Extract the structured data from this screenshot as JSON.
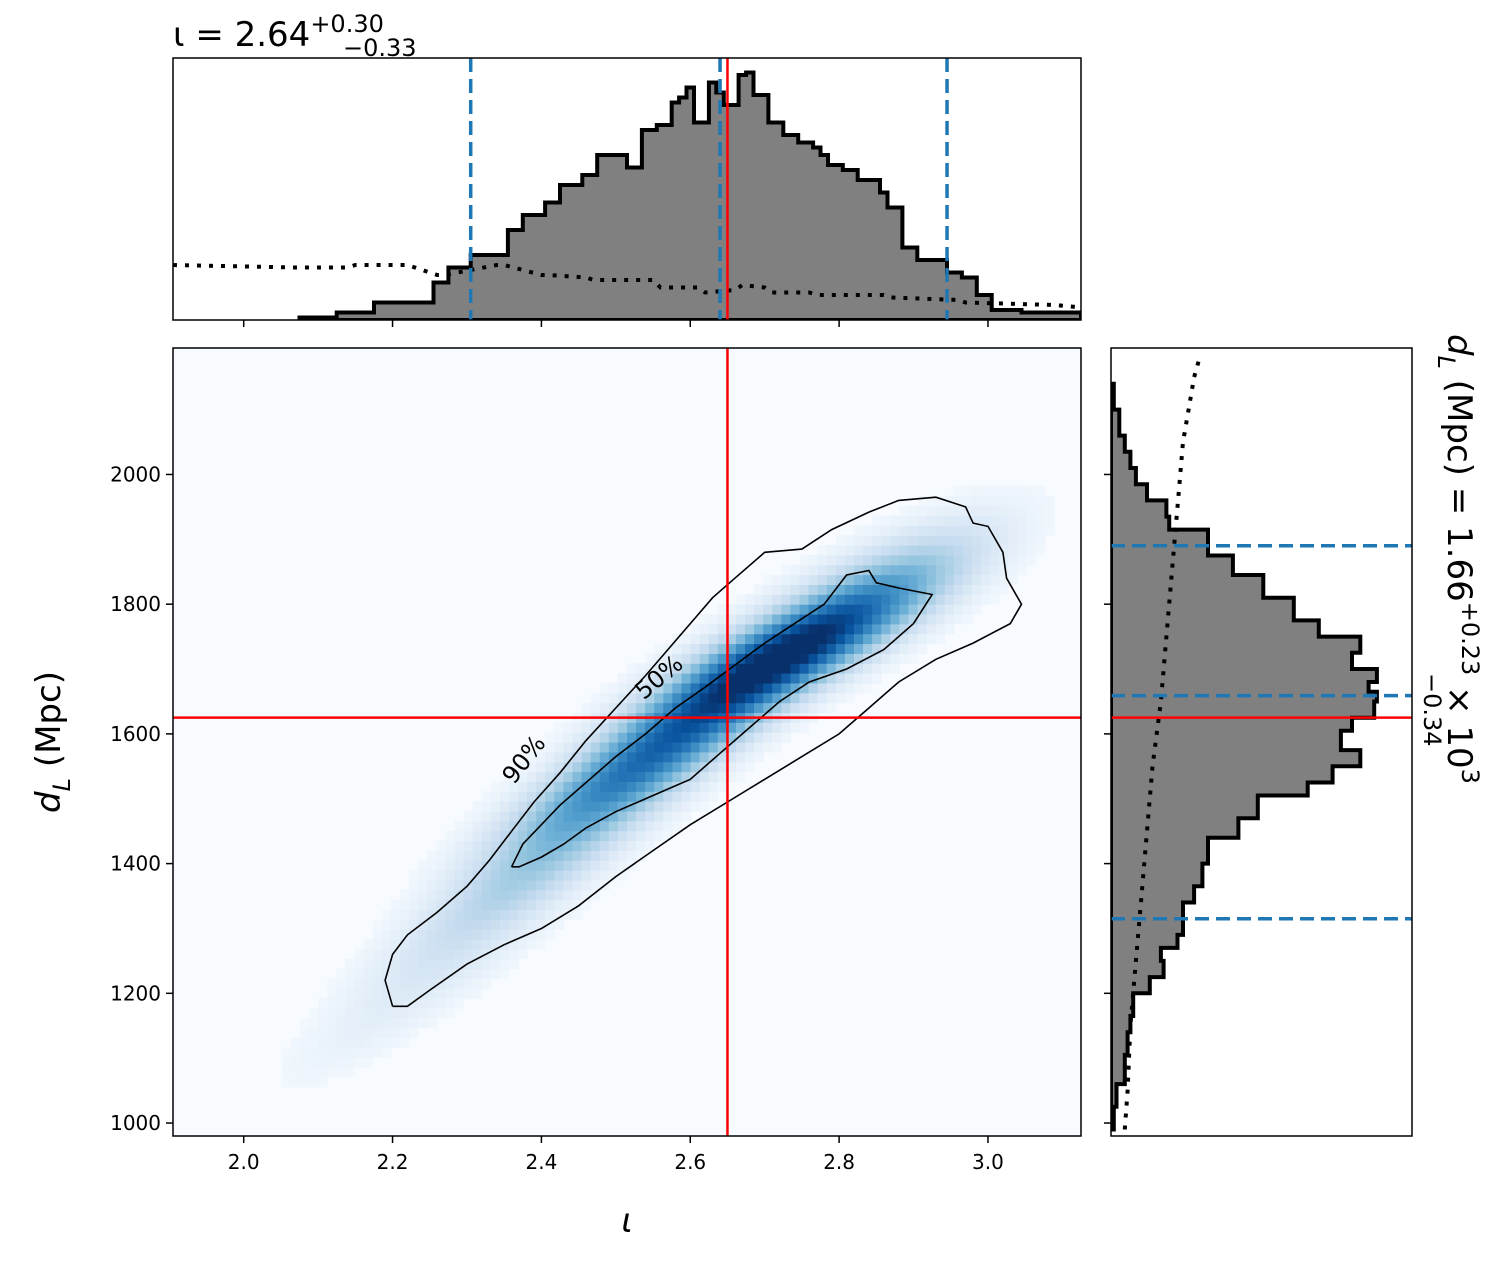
{
  "chart_data": {
    "type": "corner",
    "colors": {
      "hist_fill": "#808080",
      "hist_edge": "#000000",
      "quantile_line": "#1f77b4",
      "truth_line": "#ff0000",
      "density_cmap": "Blues"
    },
    "x_param": {
      "symbol": "ι",
      "label": "ι",
      "title_main": "ι = 2.64",
      "title_sup": "+0.30",
      "title_sub": "−0.33",
      "median": 2.64,
      "quantiles": [
        2.305,
        2.64,
        2.945
      ],
      "truth": 2.65,
      "range": [
        1.905,
        3.125
      ],
      "ticks": [
        2.0,
        2.2,
        2.4,
        2.6,
        2.8,
        3.0
      ],
      "tick_labels": [
        "2.0",
        "2.2",
        "2.4",
        "2.6",
        "2.8",
        "3.0"
      ]
    },
    "y_param": {
      "symbol": "d",
      "sub": "L",
      "units": " (Mpc)",
      "title_main": " (Mpc) = 1.66",
      "title_sup": "+0.23",
      "title_sub": "−0.34",
      "title_tail": " × 10",
      "title_exp": "3",
      "median": 1660,
      "quantiles": [
        1315,
        1659,
        1890
      ],
      "truth": 1625,
      "range": [
        980,
        2195
      ],
      "ticks": [
        1000,
        1200,
        1400,
        1600,
        1800,
        2000
      ],
      "tick_labels": [
        "1000",
        "1200",
        "1400",
        "1600",
        "1800",
        "2000"
      ]
    },
    "x_histogram": {
      "bin_edges": [
        2.075,
        2.125,
        2.175,
        2.225,
        2.255,
        2.275,
        2.305,
        2.355,
        2.375,
        2.405,
        2.425,
        2.455,
        2.475,
        2.505,
        2.515,
        2.535,
        2.555,
        2.575,
        2.585,
        2.595,
        2.605,
        2.625,
        2.635,
        2.645,
        2.665,
        2.675,
        2.685,
        2.705,
        2.725,
        2.745,
        2.765,
        2.775,
        2.785,
        2.805,
        2.825,
        2.855,
        2.865,
        2.885,
        2.905,
        2.945,
        2.965,
        2.985,
        3.005,
        3.045,
        3.085,
        3.125
      ],
      "heights": [
        0.01,
        0.03,
        0.07,
        0.07,
        0.15,
        0.21,
        0.26,
        0.36,
        0.42,
        0.47,
        0.54,
        0.58,
        0.66,
        0.66,
        0.61,
        0.76,
        0.78,
        0.87,
        0.89,
        0.93,
        0.79,
        0.95,
        0.91,
        0.86,
        0.98,
        0.99,
        0.9,
        0.79,
        0.74,
        0.71,
        0.69,
        0.66,
        0.62,
        0.6,
        0.56,
        0.51,
        0.45,
        0.29,
        0.24,
        0.19,
        0.17,
        0.1,
        0.04,
        0.03,
        0.03
      ]
    },
    "x_prior": {
      "x": [
        1.905,
        2.07,
        2.14,
        2.15,
        2.22,
        2.26,
        2.27,
        2.34,
        2.35,
        2.4,
        2.41,
        2.46,
        2.47,
        2.55,
        2.56,
        2.61,
        2.62,
        2.66,
        2.67,
        2.7,
        2.71,
        2.76,
        2.77,
        2.86,
        2.87,
        2.96,
        2.97,
        3.09,
        3.125
      ],
      "y": [
        0.22,
        0.21,
        0.21,
        0.22,
        0.22,
        0.18,
        0.18,
        0.22,
        0.22,
        0.18,
        0.18,
        0.17,
        0.16,
        0.16,
        0.13,
        0.13,
        0.11,
        0.12,
        0.14,
        0.13,
        0.11,
        0.11,
        0.1,
        0.1,
        0.09,
        0.08,
        0.07,
        0.06,
        0.05
      ]
    },
    "y_histogram": {
      "bin_edges": [
        990,
        1025,
        1060,
        1105,
        1140,
        1165,
        1200,
        1225,
        1250,
        1270,
        1290,
        1315,
        1340,
        1365,
        1400,
        1440,
        1470,
        1505,
        1525,
        1550,
        1575,
        1605,
        1625,
        1650,
        1665,
        1680,
        1700,
        1725,
        1750,
        1775,
        1810,
        1845,
        1875,
        1915,
        1935,
        1960,
        1985,
        2010,
        2035,
        2060,
        2100,
        2140
      ],
      "widths": [
        0.01,
        0.02,
        0.05,
        0.06,
        0.07,
        0.08,
        0.14,
        0.19,
        0.18,
        0.24,
        0.26,
        0.26,
        0.3,
        0.33,
        0.35,
        0.46,
        0.53,
        0.71,
        0.8,
        0.9,
        0.83,
        0.87,
        0.95,
        0.96,
        0.93,
        0.96,
        0.87,
        0.9,
        0.75,
        0.66,
        0.55,
        0.44,
        0.35,
        0.21,
        0.2,
        0.13,
        0.09,
        0.07,
        0.05,
        0.03,
        0.01
      ]
    },
    "y_prior": {
      "y": [
        990,
        1050,
        1150,
        1250,
        1350,
        1450,
        1550,
        1650,
        1750,
        1850,
        1950,
        2050,
        2100,
        2150,
        2180
      ],
      "x": [
        0.05,
        0.06,
        0.07,
        0.09,
        0.11,
        0.13,
        0.15,
        0.18,
        0.2,
        0.22,
        0.24,
        0.26,
        0.28,
        0.3,
        0.32
      ]
    },
    "contours": [
      {
        "label": "50%",
        "points": [
          [
            2.36,
            1395
          ],
          [
            2.375,
            1430
          ],
          [
            2.4,
            1460
          ],
          [
            2.425,
            1490
          ],
          [
            2.46,
            1525
          ],
          [
            2.5,
            1565
          ],
          [
            2.54,
            1600
          ],
          [
            2.58,
            1640
          ],
          [
            2.62,
            1672
          ],
          [
            2.66,
            1706
          ],
          [
            2.7,
            1740
          ],
          [
            2.74,
            1770
          ],
          [
            2.78,
            1800
          ],
          [
            2.81,
            1845
          ],
          [
            2.84,
            1852
          ],
          [
            2.85,
            1833
          ],
          [
            2.88,
            1825
          ],
          [
            2.925,
            1815
          ],
          [
            2.9,
            1770
          ],
          [
            2.86,
            1730
          ],
          [
            2.81,
            1700
          ],
          [
            2.76,
            1680
          ],
          [
            2.72,
            1650
          ],
          [
            2.68,
            1610
          ],
          [
            2.64,
            1570
          ],
          [
            2.6,
            1530
          ],
          [
            2.55,
            1505
          ],
          [
            2.5,
            1480
          ],
          [
            2.46,
            1455
          ],
          [
            2.43,
            1430
          ],
          [
            2.4,
            1410
          ],
          [
            2.37,
            1395
          ],
          [
            2.36,
            1395
          ]
        ]
      },
      {
        "label": "90%",
        "points": [
          [
            2.2,
            1180
          ],
          [
            2.19,
            1220
          ],
          [
            2.2,
            1260
          ],
          [
            2.22,
            1290
          ],
          [
            2.26,
            1325
          ],
          [
            2.3,
            1365
          ],
          [
            2.33,
            1405
          ],
          [
            2.36,
            1450
          ],
          [
            2.39,
            1495
          ],
          [
            2.425,
            1540
          ],
          [
            2.46,
            1590
          ],
          [
            2.5,
            1640
          ],
          [
            2.54,
            1690
          ],
          [
            2.57,
            1730
          ],
          [
            2.6,
            1770
          ],
          [
            2.63,
            1810
          ],
          [
            2.66,
            1840
          ],
          [
            2.7,
            1880
          ],
          [
            2.75,
            1885
          ],
          [
            2.79,
            1915
          ],
          [
            2.84,
            1942
          ],
          [
            2.88,
            1960
          ],
          [
            2.93,
            1965
          ],
          [
            2.97,
            1950
          ],
          [
            2.98,
            1925
          ],
          [
            3.0,
            1920
          ],
          [
            3.02,
            1880
          ],
          [
            3.025,
            1840
          ],
          [
            3.045,
            1800
          ],
          [
            3.03,
            1770
          ],
          [
            2.98,
            1740
          ],
          [
            2.93,
            1715
          ],
          [
            2.88,
            1680
          ],
          [
            2.84,
            1640
          ],
          [
            2.8,
            1600
          ],
          [
            2.75,
            1565
          ],
          [
            2.7,
            1530
          ],
          [
            2.65,
            1495
          ],
          [
            2.6,
            1460
          ],
          [
            2.55,
            1420
          ],
          [
            2.5,
            1380
          ],
          [
            2.45,
            1335
          ],
          [
            2.4,
            1300
          ],
          [
            2.35,
            1275
          ],
          [
            2.3,
            1245
          ],
          [
            2.25,
            1205
          ],
          [
            2.22,
            1180
          ],
          [
            2.2,
            1180
          ]
        ]
      }
    ],
    "density_blobs": [
      {
        "x": 2.72,
        "y": 1720,
        "sx": 0.11,
        "sy": 70,
        "rho": 0.82,
        "w": 1.0
      },
      {
        "x": 2.55,
        "y": 1570,
        "sx": 0.12,
        "sy": 90,
        "rho": 0.88,
        "w": 0.75
      },
      {
        "x": 2.4,
        "y": 1400,
        "sx": 0.12,
        "sy": 100,
        "rho": 0.9,
        "w": 0.3
      },
      {
        "x": 2.85,
        "y": 1820,
        "sx": 0.1,
        "sy": 70,
        "rho": 0.75,
        "w": 0.35
      },
      {
        "x": 2.25,
        "y": 1220,
        "sx": 0.12,
        "sy": 100,
        "rho": 0.9,
        "w": 0.08
      }
    ]
  }
}
